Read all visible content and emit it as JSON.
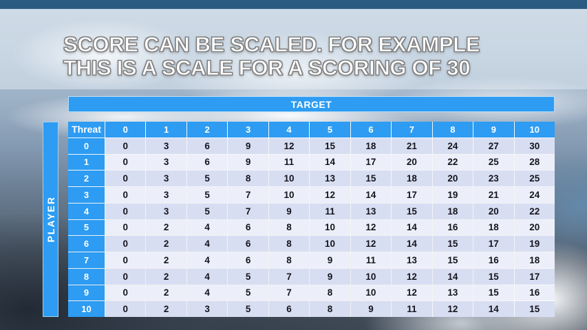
{
  "title": {
    "line1": "SCORE CAN BE SCALED. FOR EXAMPLE",
    "line2": "THIS IS A SCALE FOR A SCORING OF 30"
  },
  "table": {
    "target_label": "TARGET",
    "player_label": "PLAYER",
    "corner_label": "Threat",
    "column_headers": [
      "0",
      "1",
      "2",
      "3",
      "4",
      "5",
      "6",
      "7",
      "8",
      "9",
      "10"
    ],
    "row_headers": [
      "0",
      "1",
      "2",
      "3",
      "4",
      "5",
      "6",
      "7",
      "8",
      "9",
      "10"
    ],
    "rows": [
      [
        0,
        3,
        6,
        9,
        12,
        15,
        18,
        21,
        24,
        27,
        30
      ],
      [
        0,
        3,
        6,
        9,
        11,
        14,
        17,
        20,
        22,
        25,
        28
      ],
      [
        0,
        3,
        5,
        8,
        10,
        13,
        15,
        18,
        20,
        23,
        25
      ],
      [
        0,
        3,
        5,
        7,
        10,
        12,
        14,
        17,
        19,
        21,
        24
      ],
      [
        0,
        3,
        5,
        7,
        9,
        11,
        13,
        15,
        18,
        20,
        22
      ],
      [
        0,
        2,
        4,
        6,
        8,
        10,
        12,
        14,
        16,
        18,
        20
      ],
      [
        0,
        2,
        4,
        6,
        8,
        10,
        12,
        14,
        15,
        17,
        19
      ],
      [
        0,
        2,
        4,
        6,
        8,
        9,
        11,
        13,
        15,
        16,
        18
      ],
      [
        0,
        2,
        4,
        5,
        7,
        9,
        10,
        12,
        14,
        15,
        17
      ],
      [
        0,
        2,
        4,
        5,
        7,
        8,
        10,
        12,
        13,
        15,
        16
      ],
      [
        0,
        2,
        3,
        5,
        6,
        8,
        9,
        11,
        12,
        14,
        15
      ]
    ]
  },
  "colors": {
    "accent_blue": "#2d9cf2",
    "top_strip": "#2b5b80",
    "row_band_dark": "#d8def2",
    "row_band_light": "#eceff9",
    "grid_line": "#ffffff",
    "title_fill": "#ffffff",
    "title_outline": "#7d7d7d"
  }
}
